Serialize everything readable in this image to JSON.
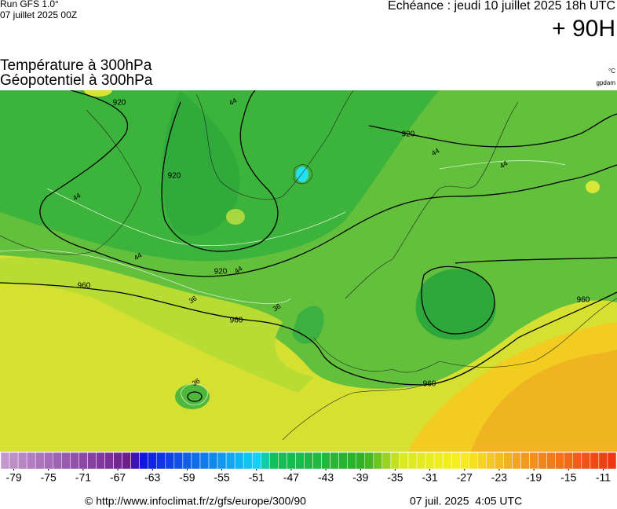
{
  "header": {
    "run": "Run GFS 1.0°",
    "run_date": "07 juillet 2025 00Z",
    "valid": "Echéance : jeudi 10 juillet 2025 18h UTC",
    "lead": "+ 90H",
    "title_temperature": "Température à 300hPa",
    "title_geopotential": "Géopotentiel à 300hPa",
    "unit_temperature": "°C",
    "unit_geopotential": "gpdam"
  },
  "map": {
    "contour_labels": [
      "920",
      "920",
      "920",
      "920",
      "960",
      "960",
      "960",
      "960",
      "44",
      "44",
      "44",
      "44",
      "44",
      "44",
      "36",
      "36",
      "36"
    ]
  },
  "colorbar": {
    "lim": [
      -80,
      -9
    ],
    "ticks": [
      -79,
      -75,
      -71,
      -67,
      -63,
      -59,
      -55,
      -51,
      -47,
      -43,
      -39,
      -35,
      -31,
      -27,
      -23,
      -19,
      -15,
      -11
    ],
    "stops": [
      {
        "value": -80,
        "color": "#c79bd0"
      },
      {
        "value": -65,
        "color": "#6a1a8c"
      },
      {
        "value": -64,
        "color": "#1010e0"
      },
      {
        "value": -50,
        "color": "#10d8f8"
      },
      {
        "value": -49,
        "color": "#10c060"
      },
      {
        "value": -38,
        "color": "#30b020"
      },
      {
        "value": -34,
        "color": "#d8e820"
      },
      {
        "value": -27,
        "color": "#f8f020"
      },
      {
        "value": -20,
        "color": "#f0a020"
      },
      {
        "value": -9,
        "color": "#f03010"
      }
    ]
  },
  "footer": {
    "source": "© http://www.infoclimat.fr/z/gfs/europe/300/90",
    "generated": "07 juil. 2025  4:05 UTC"
  }
}
